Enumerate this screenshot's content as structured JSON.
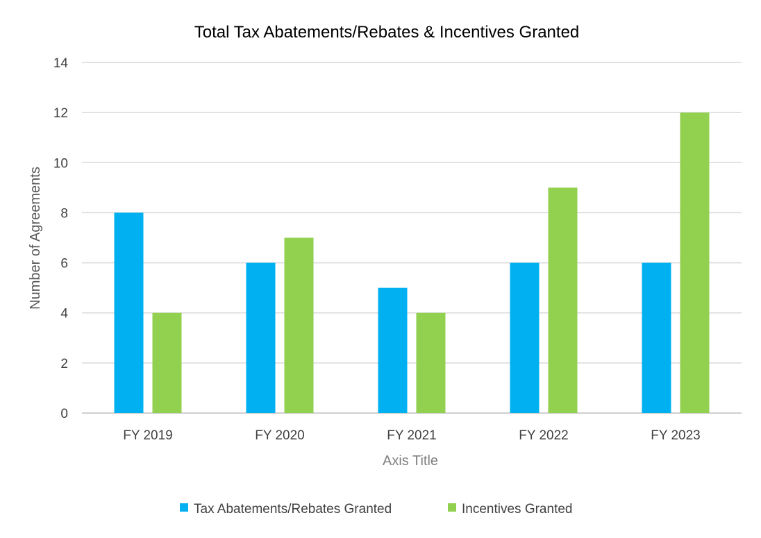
{
  "chart_data": {
    "type": "bar",
    "title": "Total Tax Abatements/Rebates & Incentives Granted",
    "xlabel": "Axis Title",
    "ylabel": "Number of Agreements",
    "categories": [
      "FY 2019",
      "FY 2020",
      "FY 2021",
      "FY 2022",
      "FY 2023"
    ],
    "series": [
      {
        "name": "Tax Abatements/Rebates Granted",
        "values": [
          8,
          6,
          5,
          6,
          6
        ],
        "color": "#00B0F0"
      },
      {
        "name": "Incentives Granted",
        "values": [
          4,
          7,
          4,
          9,
          12
        ],
        "color": "#92D050"
      }
    ],
    "ylim": [
      0,
      14
    ],
    "yticks": [
      "0",
      "2",
      "4",
      "6",
      "8",
      "10",
      "12",
      "14"
    ],
    "grid": true,
    "legend": "bottom"
  }
}
